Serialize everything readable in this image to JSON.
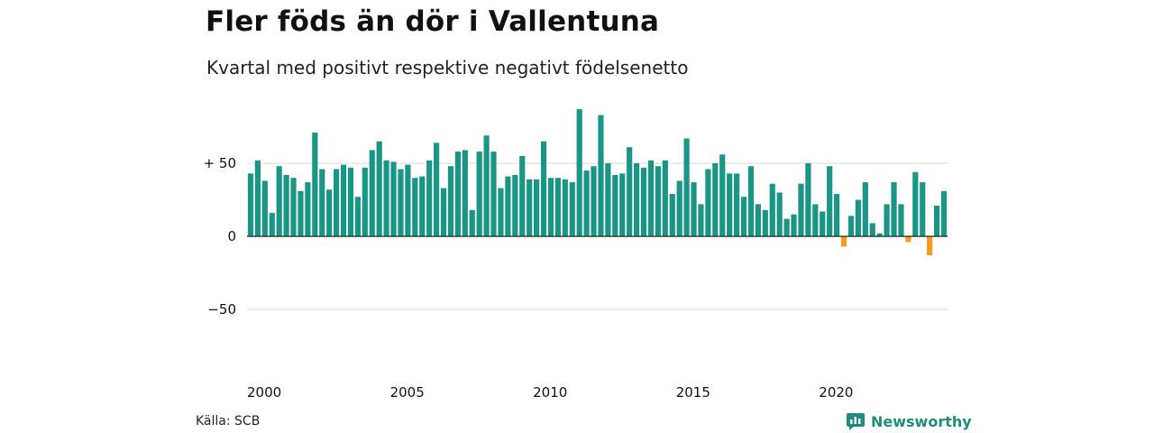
{
  "header": {
    "title": "Fler föds än dör i Vallentuna",
    "subtitle": "Kvartal med positivt respektive negativt födelsenetto"
  },
  "footer": {
    "source": "Källa: SCB",
    "brand": "Newsworthy",
    "brand_icon": "newsworthy-logo-icon"
  },
  "colors": {
    "positive": "#1a9687",
    "negative": "#f39c1e",
    "grid": "#d9d9d9",
    "baseline": "#222222",
    "brand": "#1e8c7e"
  },
  "chart_data": {
    "type": "bar",
    "title": "Fler föds än dör i Vallentuna",
    "subtitle": "Kvartal med positivt respektive negativt födelsenetto",
    "xlabel": "",
    "ylabel": "",
    "ylim": [
      -85,
      90
    ],
    "y_ticks": [
      {
        "value": 50,
        "label": "+ 50"
      },
      {
        "value": 0,
        "label": "0"
      },
      {
        "value": -50,
        "label": "−50"
      }
    ],
    "x_ticks": [
      {
        "index": 0,
        "label": "2000"
      },
      {
        "index": 20,
        "label": "2005"
      },
      {
        "index": 40,
        "label": "2010"
      },
      {
        "index": 60,
        "label": "2015"
      },
      {
        "index": 80,
        "label": "2020"
      }
    ],
    "grid": true,
    "categories": [
      "2000 K1",
      "2000 K2",
      "2000 K3",
      "2000 K4",
      "2001 K1",
      "2001 K2",
      "2001 K3",
      "2001 K4",
      "2002 K1",
      "2002 K2",
      "2002 K3",
      "2002 K4",
      "2003 K1",
      "2003 K2",
      "2003 K3",
      "2003 K4",
      "2004 K1",
      "2004 K2",
      "2004 K3",
      "2004 K4",
      "2005 K1",
      "2005 K2",
      "2005 K3",
      "2005 K4",
      "2006 K1",
      "2006 K2",
      "2006 K3",
      "2006 K4",
      "2007 K1",
      "2007 K2",
      "2007 K3",
      "2007 K4",
      "2008 K1",
      "2008 K2",
      "2008 K3",
      "2008 K4",
      "2009 K1",
      "2009 K2",
      "2009 K3",
      "2009 K4",
      "2010 K1",
      "2010 K2",
      "2010 K3",
      "2010 K4",
      "2011 K1",
      "2011 K2",
      "2011 K3",
      "2011 K4",
      "2012 K1",
      "2012 K2",
      "2012 K3",
      "2012 K4",
      "2013 K1",
      "2013 K2",
      "2013 K3",
      "2013 K4",
      "2014 K1",
      "2014 K2",
      "2014 K3",
      "2014 K4",
      "2015 K1",
      "2015 K2",
      "2015 K3",
      "2015 K4",
      "2016 K1",
      "2016 K2",
      "2016 K3",
      "2016 K4",
      "2017 K1",
      "2017 K2",
      "2017 K3",
      "2017 K4",
      "2018 K1",
      "2018 K2",
      "2018 K3",
      "2018 K4",
      "2019 K1",
      "2019 K2",
      "2019 K3",
      "2019 K4",
      "2020 K1",
      "2020 K2",
      "2020 K3",
      "2020 K4",
      "2021 K1",
      "2021 K2",
      "2021 K3",
      "2021 K4",
      "2022 K1",
      "2022 K2",
      "2022 K3",
      "2022 K4",
      "2023 K1",
      "2023 K2",
      "2023 K3",
      "2023 K4",
      "2024 K1",
      "2024 K2"
    ],
    "values": [
      43,
      52,
      38,
      16,
      48,
      42,
      40,
      31,
      37,
      71,
      46,
      32,
      46,
      49,
      47,
      27,
      47,
      59,
      65,
      52,
      51,
      46,
      49,
      40,
      41,
      52,
      64,
      33,
      48,
      58,
      59,
      18,
      58,
      69,
      58,
      33,
      41,
      42,
      55,
      39,
      39,
      65,
      40,
      40,
      39,
      37,
      87,
      45,
      48,
      83,
      50,
      42,
      43,
      61,
      50,
      47,
      52,
      48,
      52,
      29,
      38,
      67,
      37,
      22,
      46,
      50,
      56,
      43,
      43,
      27,
      48,
      22,
      18,
      36,
      30,
      12,
      15,
      36,
      50,
      22,
      17,
      48,
      29,
      -7,
      14,
      25,
      37,
      9,
      2,
      22,
      37,
      22,
      -4,
      44,
      37,
      -13,
      21,
      31
    ]
  }
}
